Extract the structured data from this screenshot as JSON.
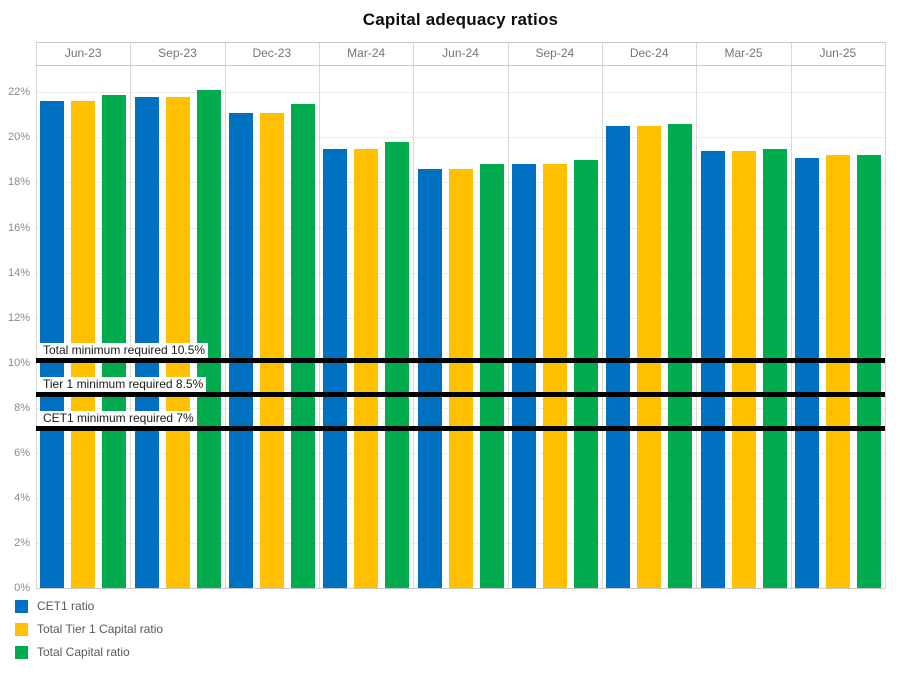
{
  "chart_data": {
    "type": "bar",
    "title": "Capital adequacy ratios",
    "xlabel": "",
    "ylabel": "",
    "categories": [
      "Jun-23",
      "Sep-23",
      "Dec-23",
      "Mar-24",
      "Jun-24",
      "Sep-24",
      "Dec-24",
      "Mar-25",
      "Jun-25"
    ],
    "series": [
      {
        "name": "CET1 ratio",
        "color": "#0070C0",
        "values": [
          21.6,
          21.8,
          21.1,
          19.5,
          18.6,
          18.8,
          20.5,
          19.4,
          19.1
        ]
      },
      {
        "name": "Total Tier 1 Capital ratio",
        "color": "#FFC000",
        "values": [
          21.6,
          21.8,
          21.1,
          19.5,
          18.6,
          18.8,
          20.5,
          19.4,
          19.2
        ]
      },
      {
        "name": "Total Capital ratio",
        "color": "#00AC4E",
        "values": [
          21.9,
          22.1,
          21.5,
          19.8,
          18.8,
          19.0,
          20.6,
          19.5,
          19.2
        ]
      }
    ],
    "y_axis": {
      "ticks": [
        "0%",
        "2%",
        "4%",
        "6%",
        "8%",
        "10%",
        "12%",
        "14%",
        "16%",
        "18%",
        "20%",
        "22%"
      ],
      "tick_values": [
        0,
        2,
        4,
        6,
        8,
        10,
        12,
        14,
        16,
        18,
        20,
        22
      ],
      "ylim": [
        0,
        23.2
      ],
      "grid": true
    },
    "reference_lines": [
      {
        "label": "Total minimum required 10.5%",
        "value": 10.5,
        "drawn_at": 10.1,
        "color": "#000000"
      },
      {
        "label": "Tier 1 minimum required 8.5%",
        "value": 8.5,
        "drawn_at": 8.6,
        "color": "#000000"
      },
      {
        "label": "CET1 minimum required 7%",
        "value": 7.0,
        "drawn_at": 7.1,
        "color": "#000000"
      }
    ],
    "legend_position": "bottom-left"
  }
}
